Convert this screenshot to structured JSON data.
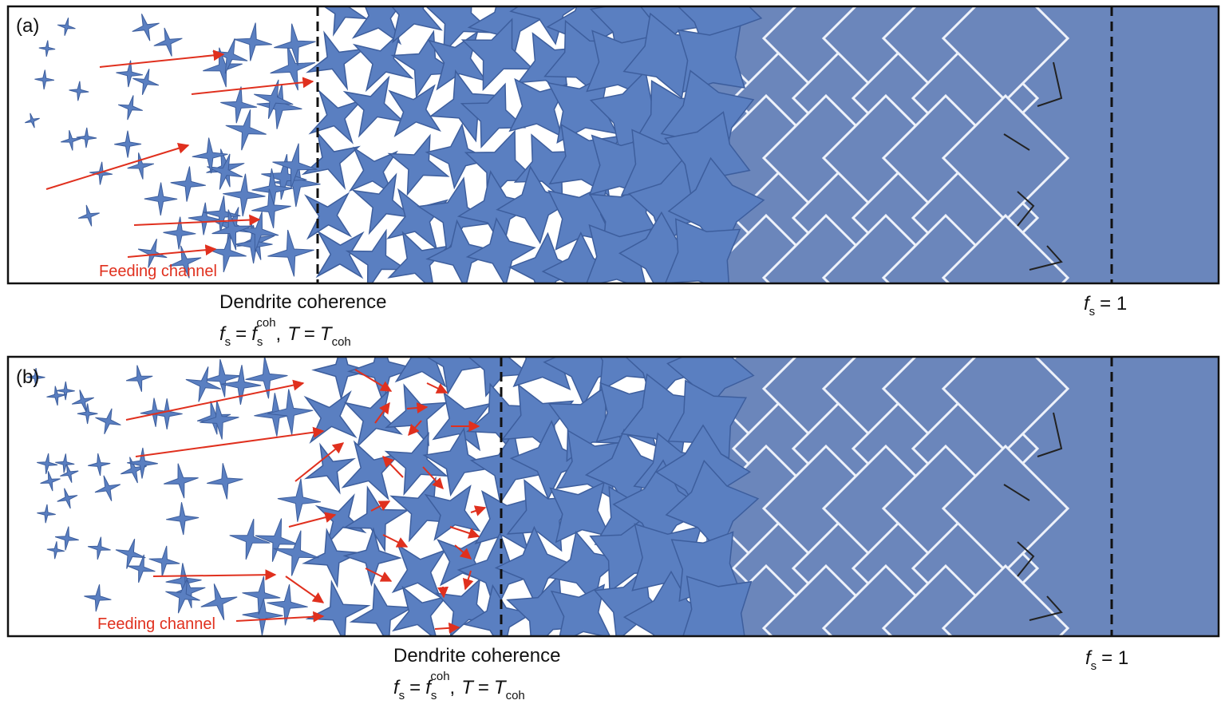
{
  "panels": [
    {
      "label": "(a)",
      "feeding": "Feeding channel",
      "coherence": "Dendrite coherence",
      "formula": [
        "f",
        "s",
        "=",
        "f",
        "s",
        "coh",
        ",",
        "T",
        "=",
        "T",
        "coh"
      ],
      "solid": [
        "f",
        "s",
        "= 1"
      ]
    },
    {
      "label": "(b)",
      "feeding": "Feeding channel",
      "coherence": "Dendrite coherence",
      "formula": [
        "f",
        "s",
        "=",
        "f",
        "s",
        "coh",
        ",",
        "T",
        "=",
        "T",
        "coh"
      ],
      "solid": [
        "f",
        "s",
        "= 1"
      ]
    }
  ]
}
